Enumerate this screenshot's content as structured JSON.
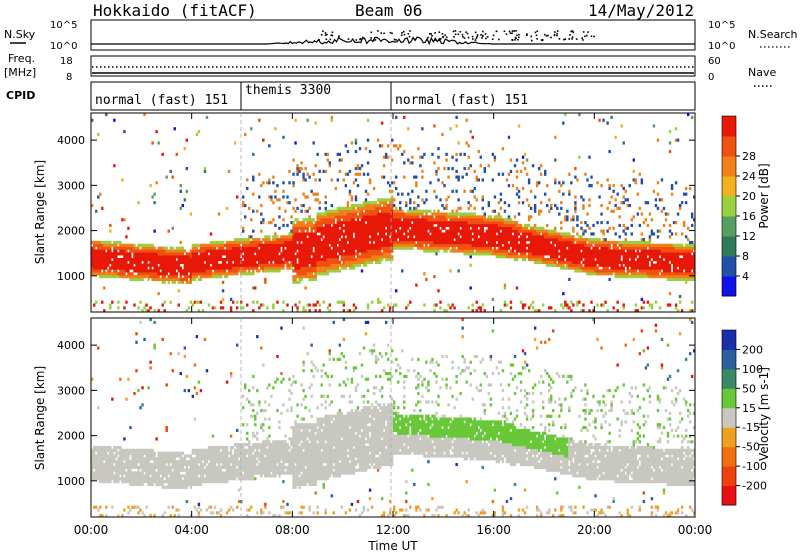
{
  "header": {
    "title": "Hokkaido (fitACF)",
    "beam": "Beam 06",
    "date": "14/May/2012"
  },
  "chart_data": [
    {
      "type": "line",
      "panel": "noise",
      "left_label": "N.Sky",
      "right_label": "N.Search",
      "left_ticks": [
        "10^5",
        "10^0"
      ],
      "right_ticks": [
        "10^5",
        "10^0"
      ]
    },
    {
      "type": "line",
      "panel": "frequency",
      "left_label_lines": [
        "Freq.",
        "[MHz]"
      ],
      "right_label": "Nave",
      "left_ticks": [
        18,
        8
      ],
      "right_ticks": [
        60,
        0
      ]
    },
    {
      "type": "table",
      "panel": "cpid",
      "label": "CPID",
      "segments": [
        {
          "name": "normal (fast) 151",
          "start_hour": 0,
          "end_hour": 6
        },
        {
          "name": "themis 3300",
          "start_hour": 6,
          "end_hour": 12
        },
        {
          "name": "normal (fast) 151",
          "start_hour": 12,
          "end_hour": 24
        }
      ]
    },
    {
      "type": "heatmap",
      "panel": "power",
      "ylabel": "Slant Range [km]",
      "yticks": [
        1000,
        2000,
        3000,
        4000
      ],
      "ylim": [
        200,
        4600
      ],
      "xlim": [
        0,
        24
      ],
      "colorbar_label": "Power [dB]",
      "colorbar_ticks": [
        4,
        8,
        12,
        16,
        20,
        24,
        28
      ],
      "colorbar_colors": [
        "#1010e8",
        "#2050a8",
        "#2e7a58",
        "#58a060",
        "#98d040",
        "#f0b020",
        "#f08018",
        "#f05010",
        "#e81808"
      ]
    },
    {
      "type": "heatmap",
      "panel": "velocity",
      "ylabel": "Slant Range [km]",
      "yticks": [
        1000,
        2000,
        3000,
        4000
      ],
      "ylim": [
        200,
        4600
      ],
      "xlim": [
        0,
        24
      ],
      "colorbar_label": "Velocity [m s-1]",
      "colorbar_ticks": [
        200,
        100,
        50,
        15,
        -15,
        -50,
        -100,
        -200
      ],
      "colorbar_colors": [
        "#1a2ea8",
        "#2a60a0",
        "#3a8a68",
        "#68c838",
        "#c8c8c0",
        "#f0a020",
        "#f07010",
        "#f04010",
        "#e81010"
      ]
    }
  ],
  "xaxis": {
    "label": "Time UT",
    "ticks": [
      "00:00",
      "04:00",
      "08:00",
      "12:00",
      "16:00",
      "20:00",
      "00:00"
    ],
    "tick_hours": [
      0,
      4,
      8,
      12,
      16,
      20,
      24
    ]
  }
}
